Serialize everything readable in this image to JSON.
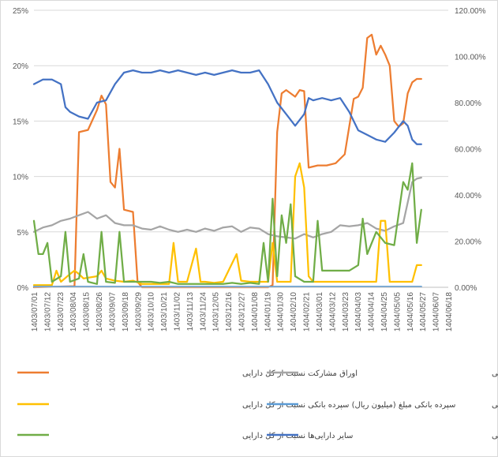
{
  "chart_data": {
    "type": "line",
    "title": "",
    "xlabel": "",
    "ylabel_left": "",
    "ylabel_right": "",
    "y_left": {
      "min": 0,
      "max": 25,
      "ticks": [
        "0%",
        "5%",
        "10%",
        "15%",
        "20%",
        "25%"
      ]
    },
    "y_right": {
      "min": 0,
      "max": 120,
      "ticks": [
        "0.00%",
        "20.00%",
        "40.00%",
        "60.00%",
        "80.00%",
        "100.00%",
        "120.00%"
      ]
    },
    "n_points": 93,
    "x_ticks": [
      "1403/07/01",
      "1403/07/12",
      "1403/07/23",
      "1403/08/04",
      "1403/08/15",
      "1403/08/26",
      "1403/09/07",
      "1403/09/18",
      "1403/09/29",
      "1403/10/10",
      "1403/10/21",
      "1403/11/02",
      "1403/11/13",
      "1403/11/24",
      "1403/12/05",
      "1403/12/16",
      "1403/12/27",
      "1404/01/08",
      "1404/01/19",
      "1404/01/30",
      "1404/02/10",
      "1404/02/21",
      "1404/03/01",
      "1404/03/12",
      "1404/03/23",
      "1404/04/03",
      "1404/04/14",
      "1404/04/25",
      "1404/05/05",
      "1404/05/16",
      "1404/05/27",
      "1404/06/07",
      "1404/06/18"
    ],
    "grid": true,
    "legend_position": "bottom",
    "series": [
      {
        "name": "اوراق مشارکت نسبت از کل دارایی",
        "color": "#ED7D31",
        "axis": "left",
        "legend_col": 0,
        "legend_row": 0,
        "points": [
          [
            0,
            0
          ],
          [
            9,
            0.1
          ],
          [
            10,
            14
          ],
          [
            12,
            14.2
          ],
          [
            14,
            16
          ],
          [
            15,
            17.3
          ],
          [
            16,
            16.5
          ],
          [
            17,
            9.5
          ],
          [
            18,
            9
          ],
          [
            19,
            12.5
          ],
          [
            20,
            7
          ],
          [
            22,
            6.8
          ],
          [
            23,
            0.5
          ],
          [
            24,
            0
          ],
          [
            52,
            0
          ],
          [
            53,
            0.2
          ],
          [
            54,
            14
          ],
          [
            55,
            17.5
          ],
          [
            56,
            17.8
          ],
          [
            58,
            17.2
          ],
          [
            59,
            17.8
          ],
          [
            60,
            17.7
          ],
          [
            61,
            10.8
          ],
          [
            63,
            11
          ],
          [
            65,
            11
          ],
          [
            67,
            11.2
          ],
          [
            69,
            12
          ],
          [
            71,
            17
          ],
          [
            72,
            17.2
          ],
          [
            73,
            18
          ],
          [
            74,
            22.5
          ],
          [
            75,
            22.8
          ],
          [
            76,
            21
          ],
          [
            77,
            21.8
          ],
          [
            78,
            21
          ],
          [
            79,
            20
          ],
          [
            80,
            15
          ],
          [
            81,
            14.5
          ],
          [
            82,
            14.8
          ],
          [
            83,
            17.5
          ],
          [
            84,
            18.5
          ],
          [
            85,
            18.8
          ],
          [
            86,
            18.8
          ]
        ]
      },
      {
        "name": "گواهی سپرده کالایی نسبت از کل دارایی",
        "color": "#A5A5A5",
        "axis": "left",
        "legend_col": 1,
        "legend_row": 0,
        "points": [
          [
            0,
            5
          ],
          [
            2,
            5.4
          ],
          [
            4,
            5.6
          ],
          [
            6,
            6
          ],
          [
            8,
            6.2
          ],
          [
            10,
            6.5
          ],
          [
            12,
            6.8
          ],
          [
            14,
            6.2
          ],
          [
            16,
            6.5
          ],
          [
            18,
            5.8
          ],
          [
            20,
            5.6
          ],
          [
            22,
            5.6
          ],
          [
            24,
            5.3
          ],
          [
            26,
            5.2
          ],
          [
            28,
            5.5
          ],
          [
            30,
            5.2
          ],
          [
            32,
            5
          ],
          [
            34,
            5.2
          ],
          [
            36,
            5
          ],
          [
            38,
            5.3
          ],
          [
            40,
            5.1
          ],
          [
            42,
            5.4
          ],
          [
            44,
            5.5
          ],
          [
            46,
            5
          ],
          [
            48,
            5.4
          ],
          [
            50,
            5.3
          ],
          [
            52,
            4.8
          ],
          [
            54,
            4.6
          ],
          [
            56,
            4.5
          ],
          [
            58,
            4.4
          ],
          [
            60,
            4.8
          ],
          [
            62,
            4.5
          ],
          [
            64,
            4.8
          ],
          [
            66,
            5
          ],
          [
            68,
            5.6
          ],
          [
            70,
            5.5
          ],
          [
            72,
            5.6
          ],
          [
            74,
            5.8
          ],
          [
            76,
            5.3
          ],
          [
            78,
            5.1
          ],
          [
            80,
            5.5
          ],
          [
            82,
            5.8
          ],
          [
            84,
            9.5
          ],
          [
            85,
            9.8
          ],
          [
            86,
            9.9
          ]
        ]
      },
      {
        "name": "سپرده بانکی مبلغ (میلیون ریال) سپرده بانکی نسبت از کل دارایی",
        "color": "#FFC000",
        "axis": "left",
        "legend_col": 0,
        "legend_row": 1,
        "points": [
          [
            0,
            0.2
          ],
          [
            4,
            0.2
          ],
          [
            5,
            1.5
          ],
          [
            6,
            0.5
          ],
          [
            8,
            1.2
          ],
          [
            9,
            1.5
          ],
          [
            10,
            1.2
          ],
          [
            11,
            0.8
          ],
          [
            14,
            1
          ],
          [
            15,
            1.5
          ],
          [
            16,
            0.8
          ],
          [
            18,
            0.6
          ],
          [
            20,
            0.5
          ],
          [
            22,
            0.6
          ],
          [
            24,
            0.3
          ],
          [
            28,
            0.3
          ],
          [
            30,
            0.3
          ],
          [
            31,
            4
          ],
          [
            32,
            0.5
          ],
          [
            34,
            0.5
          ],
          [
            36,
            3.5
          ],
          [
            37,
            0.5
          ],
          [
            38,
            0.5
          ],
          [
            40,
            0.4
          ],
          [
            42,
            0.5
          ],
          [
            45,
            3
          ],
          [
            46,
            0.6
          ],
          [
            48,
            0.5
          ],
          [
            50,
            0.5
          ],
          [
            52,
            0.5
          ],
          [
            53,
            4
          ],
          [
            54,
            0.5
          ],
          [
            57,
            0.5
          ],
          [
            58,
            10
          ],
          [
            59,
            11.2
          ],
          [
            60,
            9
          ],
          [
            61,
            1
          ],
          [
            62,
            0.5
          ],
          [
            64,
            0.5
          ],
          [
            66,
            0.5
          ],
          [
            68,
            0.5
          ],
          [
            70,
            0.5
          ],
          [
            72,
            0.5
          ],
          [
            74,
            0.5
          ],
          [
            76,
            0.5
          ],
          [
            77,
            6
          ],
          [
            78,
            6
          ],
          [
            79,
            0.5
          ],
          [
            80,
            0.5
          ],
          [
            82,
            0.5
          ],
          [
            84,
            0.5
          ],
          [
            85,
            2
          ],
          [
            86,
            2
          ]
        ]
      },
      {
        "name": "وجه نقد نسبت از کل دارایی",
        "color": "#5B9BD5",
        "axis": "left",
        "legend_col": 1,
        "legend_row": 1,
        "points": [
          [
            0,
            0.05
          ],
          [
            86,
            0.05
          ]
        ]
      },
      {
        "name": "سایر دارایی‌ها نسبت از کل دارایی",
        "color": "#70AD47",
        "axis": "left",
        "legend_col": 0,
        "legend_row": 2,
        "points": [
          [
            0,
            6
          ],
          [
            1,
            3
          ],
          [
            2,
            3
          ],
          [
            3,
            4
          ],
          [
            4,
            0.5
          ],
          [
            6,
            1
          ],
          [
            7,
            5
          ],
          [
            8,
            0.5
          ],
          [
            10,
            0.8
          ],
          [
            11,
            3
          ],
          [
            12,
            0.5
          ],
          [
            14,
            0.3
          ],
          [
            15,
            5
          ],
          [
            16,
            0.5
          ],
          [
            18,
            0.4
          ],
          [
            19,
            5
          ],
          [
            20,
            0.5
          ],
          [
            22,
            0.5
          ],
          [
            24,
            0.5
          ],
          [
            26,
            0.5
          ],
          [
            28,
            0.4
          ],
          [
            30,
            0.5
          ],
          [
            32,
            0.3
          ],
          [
            34,
            0.3
          ],
          [
            36,
            0.3
          ],
          [
            38,
            0.3
          ],
          [
            40,
            0.3
          ],
          [
            42,
            0.3
          ],
          [
            44,
            0.4
          ],
          [
            46,
            0.3
          ],
          [
            48,
            0.4
          ],
          [
            50,
            0.3
          ],
          [
            51,
            4
          ],
          [
            52,
            0.5
          ],
          [
            53,
            8
          ],
          [
            54,
            1
          ],
          [
            55,
            6.5
          ],
          [
            56,
            4
          ],
          [
            57,
            7.5
          ],
          [
            58,
            1
          ],
          [
            60,
            0.5
          ],
          [
            62,
            0.5
          ],
          [
            63,
            6
          ],
          [
            64,
            1.5
          ],
          [
            66,
            1.5
          ],
          [
            68,
            1.5
          ],
          [
            70,
            1.5
          ],
          [
            72,
            2
          ],
          [
            73,
            6.2
          ],
          [
            74,
            3
          ],
          [
            76,
            5
          ],
          [
            78,
            4
          ],
          [
            80,
            3.8
          ],
          [
            82,
            9.5
          ],
          [
            83,
            8.8
          ],
          [
            84,
            11.2
          ],
          [
            85,
            4
          ],
          [
            86,
            7
          ]
        ]
      },
      {
        "name": "سهام نسبت از کل دارایی",
        "color": "#4472C4",
        "axis": "right",
        "legend_col": 1,
        "legend_row": 2,
        "points": [
          [
            0,
            88
          ],
          [
            2,
            90
          ],
          [
            4,
            90
          ],
          [
            6,
            88
          ],
          [
            7,
            78
          ],
          [
            8,
            76
          ],
          [
            10,
            74
          ],
          [
            12,
            73
          ],
          [
            14,
            80
          ],
          [
            16,
            81
          ],
          [
            18,
            88
          ],
          [
            20,
            93
          ],
          [
            22,
            94
          ],
          [
            24,
            93
          ],
          [
            26,
            93
          ],
          [
            28,
            94
          ],
          [
            30,
            93
          ],
          [
            32,
            94
          ],
          [
            34,
            93
          ],
          [
            36,
            92
          ],
          [
            38,
            93
          ],
          [
            40,
            92
          ],
          [
            42,
            93
          ],
          [
            44,
            94
          ],
          [
            46,
            93
          ],
          [
            48,
            93
          ],
          [
            50,
            94
          ],
          [
            52,
            88
          ],
          [
            54,
            80
          ],
          [
            56,
            75
          ],
          [
            58,
            70
          ],
          [
            60,
            75
          ],
          [
            61,
            82
          ],
          [
            62,
            81
          ],
          [
            64,
            82
          ],
          [
            66,
            81
          ],
          [
            68,
            82
          ],
          [
            70,
            76
          ],
          [
            72,
            68
          ],
          [
            74,
            66
          ],
          [
            76,
            64
          ],
          [
            78,
            63
          ],
          [
            80,
            67
          ],
          [
            82,
            72
          ],
          [
            83,
            70
          ],
          [
            84,
            64
          ],
          [
            85,
            62
          ],
          [
            86,
            62
          ]
        ]
      }
    ]
  }
}
